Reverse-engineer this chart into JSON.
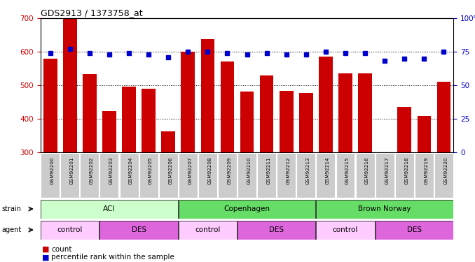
{
  "title": "GDS2913 / 1373758_at",
  "samples": [
    "GSM92200",
    "GSM92201",
    "GSM92202",
    "GSM92203",
    "GSM92204",
    "GSM92205",
    "GSM92206",
    "GSM92207",
    "GSM92208",
    "GSM92209",
    "GSM92210",
    "GSM92211",
    "GSM92212",
    "GSM92213",
    "GSM92214",
    "GSM92215",
    "GSM92216",
    "GSM92217",
    "GSM92218",
    "GSM92219",
    "GSM92220"
  ],
  "counts": [
    580,
    698,
    533,
    422,
    495,
    490,
    362,
    600,
    638,
    570,
    480,
    530,
    483,
    477,
    585,
    535,
    535,
    300,
    435,
    408,
    510
  ],
  "percentiles": [
    74,
    77,
    74,
    73,
    74,
    73,
    71,
    75,
    75,
    74,
    73,
    74,
    73,
    73,
    75,
    74,
    74,
    68,
    70,
    70,
    75
  ],
  "ylim_left": [
    300,
    700
  ],
  "ylim_right": [
    0,
    100
  ],
  "yticks_left": [
    300,
    400,
    500,
    600,
    700
  ],
  "yticks_right": [
    0,
    25,
    50,
    75,
    100
  ],
  "bar_color": "#cc0000",
  "dot_color": "#0000cc",
  "strain_groups": [
    {
      "label": "ACI",
      "start": 0,
      "end": 6,
      "color": "#ccffcc"
    },
    {
      "label": "Copenhagen",
      "start": 7,
      "end": 13,
      "color": "#66dd66"
    },
    {
      "label": "Brown Norway",
      "start": 14,
      "end": 20,
      "color": "#66dd66"
    }
  ],
  "agent_groups": [
    {
      "label": "control",
      "start": 0,
      "end": 2,
      "color": "#ffccff"
    },
    {
      "label": "DES",
      "start": 3,
      "end": 6,
      "color": "#dd66dd"
    },
    {
      "label": "control",
      "start": 7,
      "end": 9,
      "color": "#ffccff"
    },
    {
      "label": "DES",
      "start": 10,
      "end": 13,
      "color": "#dd66dd"
    },
    {
      "label": "control",
      "start": 14,
      "end": 16,
      "color": "#ffccff"
    },
    {
      "label": "DES",
      "start": 17,
      "end": 20,
      "color": "#dd66dd"
    }
  ],
  "legend_count_label": "count",
  "legend_pct_label": "percentile rank within the sample",
  "bar_color_label": "#cc0000",
  "dot_color_label": "#0000cc",
  "xlabel_color": "#cc0000",
  "right_axis_color": "#0000cc",
  "sample_box_color": "#cccccc",
  "grid_yticks": [
    400,
    500,
    600
  ]
}
